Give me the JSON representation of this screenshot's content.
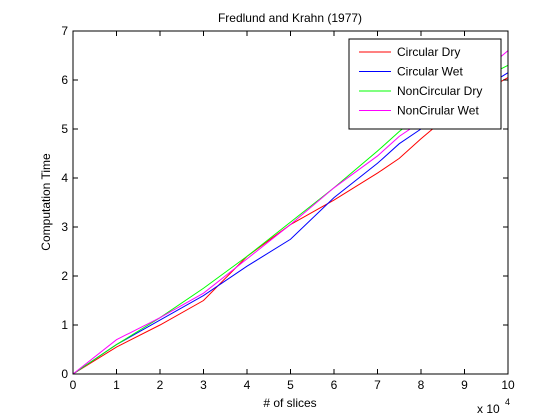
{
  "chart_data": {
    "type": "line",
    "title": "Fredlund and Krahn (1977)",
    "xlabel": "# of slices",
    "ylabel": "Computation Time",
    "x_exponent": {
      "base": "x 10",
      "power": "4"
    },
    "xlim": [
      0,
      10
    ],
    "ylim": [
      0,
      7
    ],
    "x_ticks": [
      "0",
      "1",
      "2",
      "3",
      "4",
      "5",
      "6",
      "7",
      "8",
      "9",
      "10"
    ],
    "y_ticks": [
      "0",
      "1",
      "2",
      "3",
      "4",
      "5",
      "6",
      "7"
    ],
    "grid": false,
    "legend_position": "top-right",
    "series": [
      {
        "name": "Circular Dry",
        "color": "#ff0000",
        "x": [
          0,
          1,
          2,
          3,
          4,
          5,
          6,
          7,
          7.5,
          8,
          9,
          10
        ],
        "y": [
          0,
          0.55,
          1.0,
          1.5,
          2.4,
          3.05,
          3.55,
          4.1,
          4.4,
          4.8,
          5.55,
          6.05
        ]
      },
      {
        "name": "Circular Wet",
        "color": "#0000ff",
        "x": [
          0,
          1,
          2,
          3,
          4,
          5,
          6,
          7,
          7.5,
          8,
          9,
          10
        ],
        "y": [
          0,
          0.6,
          1.1,
          1.6,
          2.2,
          2.75,
          3.6,
          4.3,
          4.7,
          5.0,
          5.6,
          6.15
        ]
      },
      {
        "name": "NonCircular Dry",
        "color": "#00ff00",
        "x": [
          0,
          1,
          2,
          3,
          4,
          5,
          6,
          7,
          7.5,
          8,
          9,
          10
        ],
        "y": [
          0,
          0.6,
          1.15,
          1.75,
          2.4,
          3.1,
          3.8,
          4.55,
          4.95,
          5.3,
          5.85,
          6.3
        ]
      },
      {
        "name": "NonCirular Wet",
        "color": "#ff00ff",
        "x": [
          0,
          1,
          2,
          3,
          4,
          5,
          6,
          7,
          7.5,
          8,
          9,
          10
        ],
        "y": [
          0,
          0.7,
          1.15,
          1.65,
          2.35,
          3.05,
          3.8,
          4.45,
          4.85,
          5.15,
          5.85,
          6.6
        ]
      }
    ]
  }
}
